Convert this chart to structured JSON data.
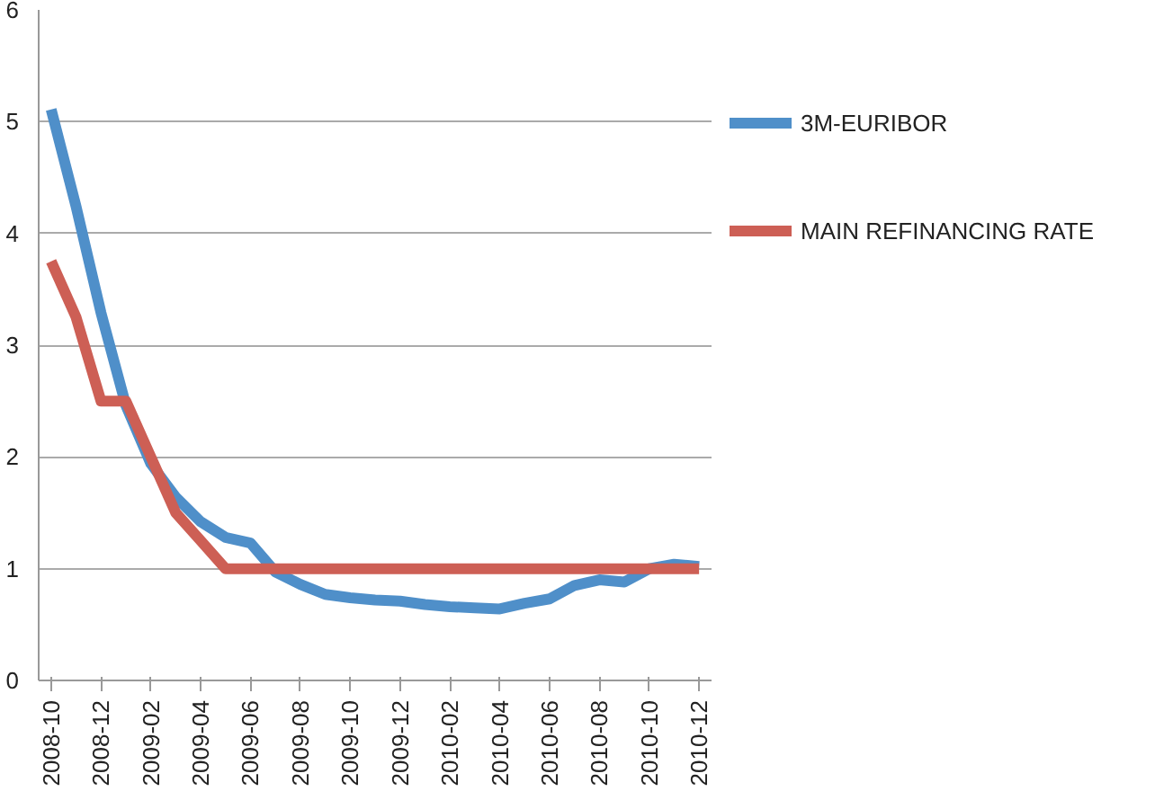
{
  "chart_data": {
    "type": "line",
    "categories": [
      "2008-10",
      null,
      "2008-12",
      null,
      "2009-02",
      null,
      "2009-04",
      null,
      "2009-06",
      null,
      "2009-08",
      null,
      "2009-10",
      null,
      "2009-12",
      null,
      "2010-02",
      null,
      "2010-04",
      null,
      "2010-06",
      null,
      "2010-08",
      null,
      "2010-10",
      null,
      "2010-12"
    ],
    "series": [
      {
        "name": "3M-EURIBOR",
        "color": "#4f8fc9",
        "values": [
          5.11,
          4.24,
          3.29,
          2.46,
          1.94,
          1.64,
          1.42,
          1.28,
          1.23,
          0.97,
          0.86,
          0.77,
          0.74,
          0.72,
          0.71,
          0.68,
          0.66,
          0.65,
          0.64,
          0.69,
          0.73,
          0.85,
          0.9,
          0.88,
          1.0,
          1.04,
          1.02
        ]
      },
      {
        "name": "MAIN REFINANCING RATE",
        "color": "#cd5f55",
        "values": [
          3.75,
          3.25,
          2.5,
          2.5,
          2.0,
          1.5,
          1.25,
          1.0,
          1.0,
          1.0,
          1.0,
          1.0,
          1.0,
          1.0,
          1.0,
          1.0,
          1.0,
          1.0,
          1.0,
          1.0,
          1.0,
          1.0,
          1.0,
          1.0,
          1.0,
          1.0,
          1.0
        ]
      }
    ],
    "ylim": [
      0,
      6
    ],
    "yticks": [
      0,
      1,
      2,
      3,
      4,
      5,
      6
    ],
    "grid": "y",
    "legend": "right",
    "marker": "none",
    "line_style": "solid"
  }
}
